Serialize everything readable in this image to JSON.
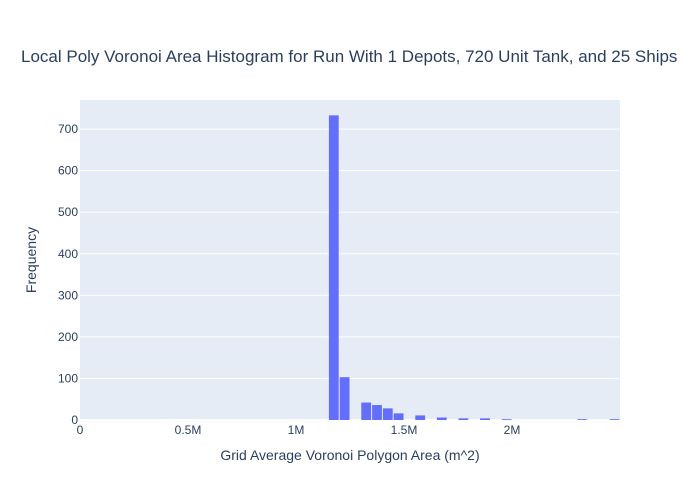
{
  "chart_data": {
    "type": "bar",
    "title": "Local Poly Voronoi Area Histogram for Run With 1 Depots, 720 Unit Tank, and 25 Ships",
    "xlabel": "Grid Average Voronoi Polygon Area (m^2)",
    "ylabel": "Frequency",
    "xlim": [
      0,
      2500000
    ],
    "ylim": [
      0,
      770
    ],
    "x_ticks": [
      {
        "value": 0,
        "label": "0"
      },
      {
        "value": 500000,
        "label": "0.5M"
      },
      {
        "value": 1000000,
        "label": "1M"
      },
      {
        "value": 1500000,
        "label": "1.5M"
      },
      {
        "value": 2000000,
        "label": "2M"
      }
    ],
    "y_ticks": [
      {
        "value": 0,
        "label": "0"
      },
      {
        "value": 100,
        "label": "100"
      },
      {
        "value": 200,
        "label": "200"
      },
      {
        "value": 300,
        "label": "300"
      },
      {
        "value": 400,
        "label": "400"
      },
      {
        "value": 500,
        "label": "500"
      },
      {
        "value": 600,
        "label": "600"
      },
      {
        "value": 700,
        "label": "700"
      }
    ],
    "bin_width": 50000,
    "bins": [
      {
        "start": 1150000,
        "count": 733
      },
      {
        "start": 1200000,
        "count": 103
      },
      {
        "start": 1250000,
        "count": 0
      },
      {
        "start": 1300000,
        "count": 42
      },
      {
        "start": 1350000,
        "count": 36
      },
      {
        "start": 1400000,
        "count": 28
      },
      {
        "start": 1450000,
        "count": 16
      },
      {
        "start": 1500000,
        "count": 0
      },
      {
        "start": 1550000,
        "count": 11
      },
      {
        "start": 1600000,
        "count": 0
      },
      {
        "start": 1650000,
        "count": 6
      },
      {
        "start": 1700000,
        "count": 0
      },
      {
        "start": 1750000,
        "count": 4
      },
      {
        "start": 1800000,
        "count": 0
      },
      {
        "start": 1850000,
        "count": 4
      },
      {
        "start": 1900000,
        "count": 0
      },
      {
        "start": 1950000,
        "count": 2
      },
      {
        "start": 2000000,
        "count": 0
      },
      {
        "start": 2300000,
        "count": 2
      },
      {
        "start": 2450000,
        "count": 2
      }
    ],
    "colors": {
      "bar": "#636efa",
      "plot_bg": "#e5ecf6",
      "grid": "#ffffff",
      "text": "#2a3f5f"
    },
    "grid": true,
    "legend": "none"
  }
}
